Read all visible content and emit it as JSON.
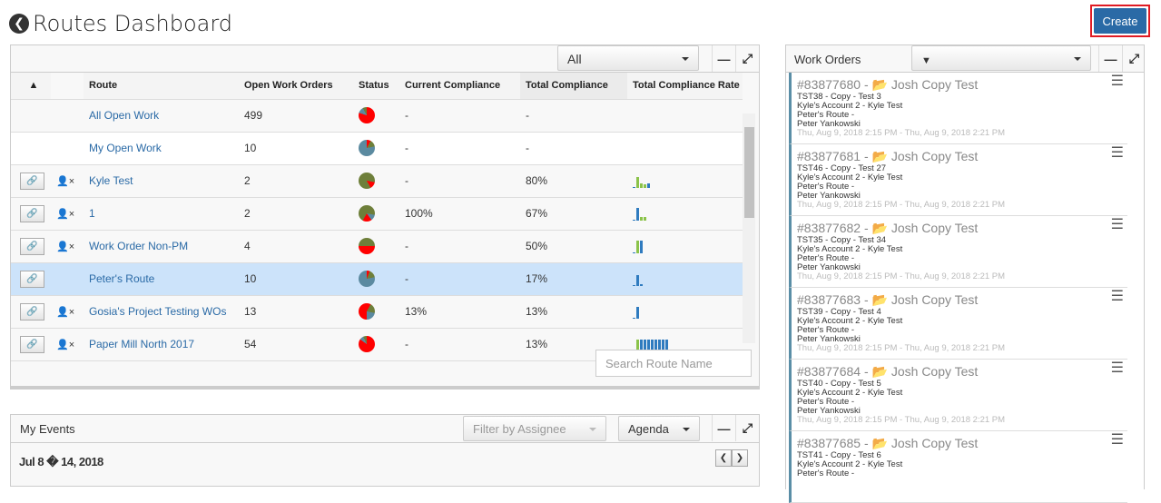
{
  "page": {
    "title": "Routes Dashboard",
    "create_label": "Create"
  },
  "routes": {
    "filter": "All",
    "columns": [
      "Route",
      "Open Work Orders",
      "Status",
      "Current Compliance",
      "Total Compliance",
      "Total Compliance Rate"
    ],
    "search_placeholder": "Search Route Name",
    "rows": [
      {
        "name": "All Open Work",
        "open": "499",
        "current": "-",
        "total": "-",
        "pie": [
          {
            "c": "#ff0000",
            "v": 80
          },
          {
            "c": "#5b8aa0",
            "v": 12
          },
          {
            "c": "#6e7f3a",
            "v": 8
          }
        ],
        "spark": [],
        "link": false,
        "unassign": false
      },
      {
        "name": "My Open Work",
        "open": "10",
        "current": "-",
        "total": "-",
        "pie": [
          {
            "c": "#ff0000",
            "v": 8
          },
          {
            "c": "#6e7f3a",
            "v": 14
          },
          {
            "c": "#5b8aa0",
            "v": 78
          }
        ],
        "spark": [],
        "link": false,
        "unassign": false
      },
      {
        "name": "Kyle Test",
        "open": "2",
        "current": "-",
        "total": "80%",
        "pie": [
          {
            "c": "#6e7f3a",
            "v": 28
          },
          {
            "c": "#ff0000",
            "v": 14
          },
          {
            "c": "#6e7f3a",
            "v": 58
          }
        ],
        "spark": [
          {
            "c": "#2f7bbf",
            "v": 1
          },
          {
            "c": "#8bc34a",
            "v": 12
          },
          {
            "c": "#8bc34a",
            "v": 5
          },
          {
            "c": "#8bc34a",
            "v": 4
          },
          {
            "c": "#2f7bbf",
            "v": 5
          }
        ],
        "link": true,
        "unassign": true
      },
      {
        "name": "1",
        "open": "2",
        "current": "100%",
        "total": "67%",
        "pie": [
          {
            "c": "#6e7f3a",
            "v": 28
          },
          {
            "c": "#5b8aa0",
            "v": 12
          },
          {
            "c": "#ff0000",
            "v": 18
          },
          {
            "c": "#6e7f3a",
            "v": 42
          }
        ],
        "spark": [
          {
            "c": "#2f7bbf",
            "v": 1
          },
          {
            "c": "#2f7bbf",
            "v": 14
          },
          {
            "c": "#8bc34a",
            "v": 4
          },
          {
            "c": "#8bc34a",
            "v": 4
          }
        ],
        "link": true,
        "unassign": true
      },
      {
        "name": "Work Order Non-PM",
        "open": "4",
        "current": "-",
        "total": "50%",
        "pie": [
          {
            "c": "#6e7f3a",
            "v": 25
          },
          {
            "c": "#ff0000",
            "v": 50
          },
          {
            "c": "#6e7f3a",
            "v": 25
          }
        ],
        "spark": [
          {
            "c": "#2f7bbf",
            "v": 1
          },
          {
            "c": "#8bc34a",
            "v": 14
          },
          {
            "c": "#2f7bbf",
            "v": 14
          }
        ],
        "link": true,
        "unassign": true
      },
      {
        "name": "Peter's Route",
        "open": "10",
        "current": "-",
        "total": "17%",
        "pie": [
          {
            "c": "#ff0000",
            "v": 6
          },
          {
            "c": "#6e7f3a",
            "v": 16
          },
          {
            "c": "#5b8aa0",
            "v": 78
          }
        ],
        "spark": [
          {
            "c": "#2f7bbf",
            "v": 1
          },
          {
            "c": "#2f7bbf",
            "v": 12
          },
          {
            "c": "#2f7bbf",
            "v": 2
          }
        ],
        "link": true,
        "unassign": false
      },
      {
        "name": "Gosia's Project Testing WOs",
        "open": "13",
        "current": "13%",
        "total": "13%",
        "pie": [
          {
            "c": "#ff0000",
            "v": 8
          },
          {
            "c": "#6e7f3a",
            "v": 20
          },
          {
            "c": "#5b8aa0",
            "v": 22
          },
          {
            "c": "#ff0000",
            "v": 50
          }
        ],
        "spark": [
          {
            "c": "#2f7bbf",
            "v": 1
          },
          {
            "c": "#2f7bbf",
            "v": 13
          }
        ],
        "link": true,
        "unassign": true
      },
      {
        "name": "Paper Mill North 2017",
        "open": "54",
        "current": "-",
        "total": "13%",
        "pie": [
          {
            "c": "#ff0000",
            "v": 85
          },
          {
            "c": "#5b8aa0",
            "v": 8
          },
          {
            "c": "#6e7f3a",
            "v": 7
          }
        ],
        "spark": [
          {
            "c": "#2f7bbf",
            "v": 1
          },
          {
            "c": "#8bc34a",
            "v": 13
          },
          {
            "c": "#2f7bbf",
            "v": 13
          },
          {
            "c": "#2f7bbf",
            "v": 13
          },
          {
            "c": "#2f7bbf",
            "v": 13
          },
          {
            "c": "#2f7bbf",
            "v": 13
          },
          {
            "c": "#2f7bbf",
            "v": 13
          },
          {
            "c": "#2f7bbf",
            "v": 13
          },
          {
            "c": "#2f7bbf",
            "v": 13
          },
          {
            "c": "#2f7bbf",
            "v": 13
          }
        ],
        "link": true,
        "unassign": true
      }
    ]
  },
  "events": {
    "title": "My Events",
    "assignee_placeholder": "Filter by Assignee",
    "view": "Agenda",
    "date_range": "Jul 8 � 14, 2018"
  },
  "work_orders": {
    "title": "Work Orders",
    "items": [
      {
        "id": "#83877680 - ",
        "name": "Josh Copy Test",
        "l1": "TST38 - Copy - Test 3",
        "l2": "Kyle's Account 2 - Kyle Test",
        "l3": "Peter's Route -",
        "l4": "Peter Yankowski",
        "dt": "Thu, Aug 9, 2018 2:15 PM - Thu, Aug 9, 2018 2:21 PM"
      },
      {
        "id": "#83877681 - ",
        "name": "Josh Copy Test",
        "l1": "TST46 - Copy - Test 27",
        "l2": "Kyle's Account 2 - Kyle Test",
        "l3": "Peter's Route -",
        "l4": "Peter Yankowski",
        "dt": "Thu, Aug 9, 2018 2:15 PM - Thu, Aug 9, 2018 2:21 PM"
      },
      {
        "id": "#83877682 - ",
        "name": "Josh Copy Test",
        "l1": "TST35 - Copy - Test 34",
        "l2": "Kyle's Account 2 - Kyle Test",
        "l3": "Peter's Route -",
        "l4": "Peter Yankowski",
        "dt": "Thu, Aug 9, 2018 2:15 PM - Thu, Aug 9, 2018 2:21 PM"
      },
      {
        "id": "#83877683 - ",
        "name": "Josh Copy Test",
        "l1": "TST39 - Copy - Test 4",
        "l2": "Kyle's Account 2 - Kyle Test",
        "l3": "Peter's Route -",
        "l4": "Peter Yankowski",
        "dt": "Thu, Aug 9, 2018 2:15 PM - Thu, Aug 9, 2018 2:21 PM"
      },
      {
        "id": "#83877684 - ",
        "name": "Josh Copy Test",
        "l1": "TST40 - Copy - Test 5",
        "l2": "Kyle's Account 2 - Kyle Test",
        "l3": "Peter's Route -",
        "l4": "Peter Yankowski",
        "dt": "Thu, Aug 9, 2018 2:15 PM - Thu, Aug 9, 2018 2:21 PM"
      },
      {
        "id": "#83877685 - ",
        "name": "Josh Copy Test",
        "l1": "TST41 - Copy - Test 6",
        "l2": "Kyle's Account 2 - Kyle Test",
        "l3": "Peter's Route -",
        "l4": "",
        "dt": ""
      }
    ]
  }
}
